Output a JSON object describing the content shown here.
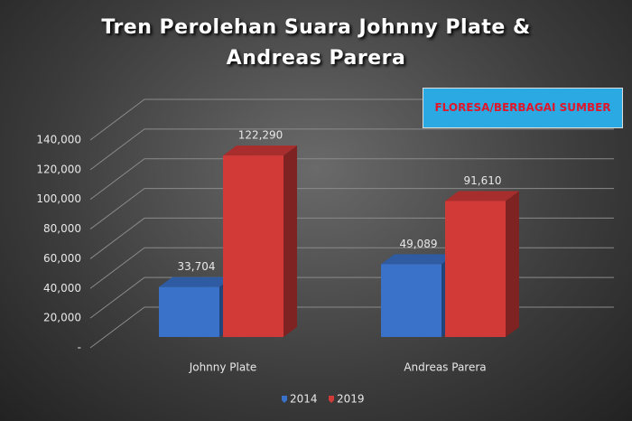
{
  "chart_data": {
    "type": "bar3d",
    "title": "Tren Perolehan Suara Johnny Plate & Andreas Parera",
    "annotation": "FLORESA/BERBAGAI SUMBER",
    "categories": [
      "Johnny Plate",
      "Andreas Parera"
    ],
    "series": [
      {
        "name": "2014",
        "color": "#3a72c9",
        "values": [
          33704,
          49089
        ],
        "value_labels": [
          "33,704",
          "49,089"
        ]
      },
      {
        "name": "2019",
        "color": "#d23a38",
        "values": [
          122290,
          91610
        ],
        "value_labels": [
          "122,290",
          "91,610"
        ]
      }
    ],
    "ylim": [
      0,
      140000
    ],
    "yticks": [
      {
        "value": 0,
        "label": "-"
      },
      {
        "value": 20000,
        "label": "20,000"
      },
      {
        "value": 40000,
        "label": "40,000"
      },
      {
        "value": 60000,
        "label": "60,000"
      },
      {
        "value": 80000,
        "label": "80,000"
      },
      {
        "value": 100000,
        "label": "100,000"
      },
      {
        "value": 120000,
        "label": "120,000"
      },
      {
        "value": 140000,
        "label": "140,000"
      }
    ],
    "grid": true,
    "legend": "bottom"
  }
}
